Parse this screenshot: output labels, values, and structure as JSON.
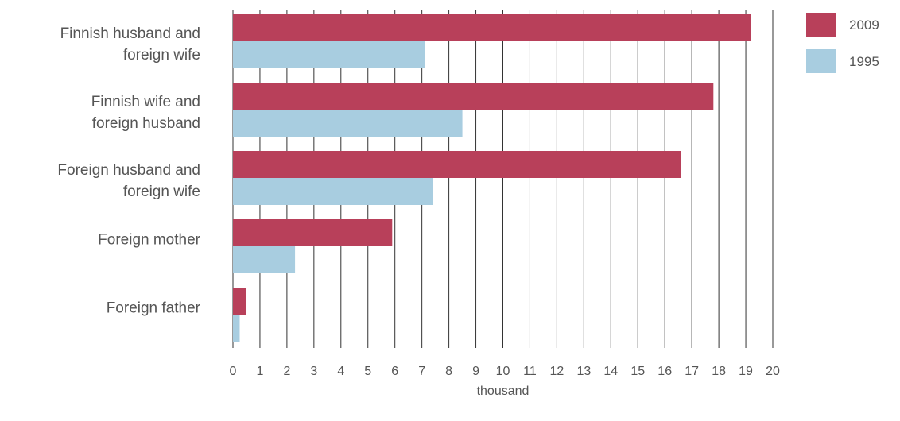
{
  "chart_data": {
    "type": "bar",
    "orientation": "horizontal",
    "categories": [
      [
        "Finnish husband and",
        "foreign wife"
      ],
      [
        "Finnish wife and",
        "foreign husband"
      ],
      [
        "Foreign husband and",
        "foreign wife"
      ],
      [
        "Foreign mother"
      ],
      [
        "Foreign father"
      ]
    ],
    "series": [
      {
        "name": "2009",
        "color": "#b8405a",
        "values": [
          19.2,
          17.8,
          16.6,
          5.9,
          0.5
        ]
      },
      {
        "name": "1995",
        "color": "#a8cde0",
        "values": [
          7.1,
          8.5,
          7.4,
          2.3,
          0.25
        ]
      }
    ],
    "xlabel": "thousand",
    "xlim": [
      0,
      20
    ],
    "xticks": [
      "0",
      "1",
      "2",
      "3",
      "4",
      "5",
      "6",
      "7",
      "8",
      "9",
      "10",
      "11",
      "12",
      "13",
      "14",
      "15",
      "16",
      "17",
      "18",
      "19",
      "20"
    ],
    "grid": "vertical",
    "legend_position": "top-right"
  }
}
